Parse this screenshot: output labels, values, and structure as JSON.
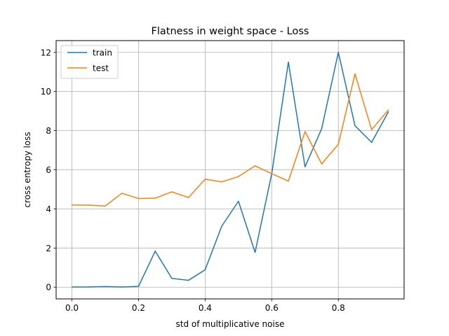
{
  "chart_data": {
    "type": "line",
    "title": "Flatness in weight space - Loss",
    "xlabel": "std of multiplicative noise",
    "ylabel": "cross entropy loss",
    "xlim": [
      -0.0475,
      0.9975
    ],
    "ylim": [
      -0.6,
      12.6
    ],
    "xticks": [
      0.0,
      0.2,
      0.4,
      0.6,
      0.8
    ],
    "xtick_labels": [
      "0.0",
      "0.2",
      "0.4",
      "0.6",
      "0.8"
    ],
    "yticks": [
      0,
      2,
      4,
      6,
      8,
      10,
      12
    ],
    "ytick_labels": [
      "0",
      "2",
      "4",
      "6",
      "8",
      "10",
      "12"
    ],
    "grid": true,
    "legend_position": "top-left",
    "x": [
      0.0,
      0.05,
      0.1,
      0.15,
      0.2,
      0.25,
      0.3,
      0.35,
      0.4,
      0.45,
      0.5,
      0.55,
      0.6,
      0.65,
      0.7,
      0.75,
      0.8,
      0.85,
      0.9,
      0.95
    ],
    "series": [
      {
        "name": "train",
        "color": "#1f77b4",
        "values": [
          0.01,
          0.01,
          0.03,
          0.01,
          0.04,
          1.84,
          0.45,
          0.35,
          0.89,
          3.12,
          4.39,
          1.78,
          5.8,
          11.5,
          6.15,
          8.1,
          12.0,
          8.25,
          7.4,
          8.95
        ]
      },
      {
        "name": "test",
        "color": "#ff7f0e",
        "values": [
          4.2,
          4.19,
          4.15,
          4.8,
          4.53,
          4.55,
          4.87,
          4.58,
          5.52,
          5.38,
          5.65,
          6.2,
          5.8,
          5.42,
          7.95,
          6.3,
          7.3,
          10.9,
          8.05,
          9.05
        ]
      }
    ]
  }
}
